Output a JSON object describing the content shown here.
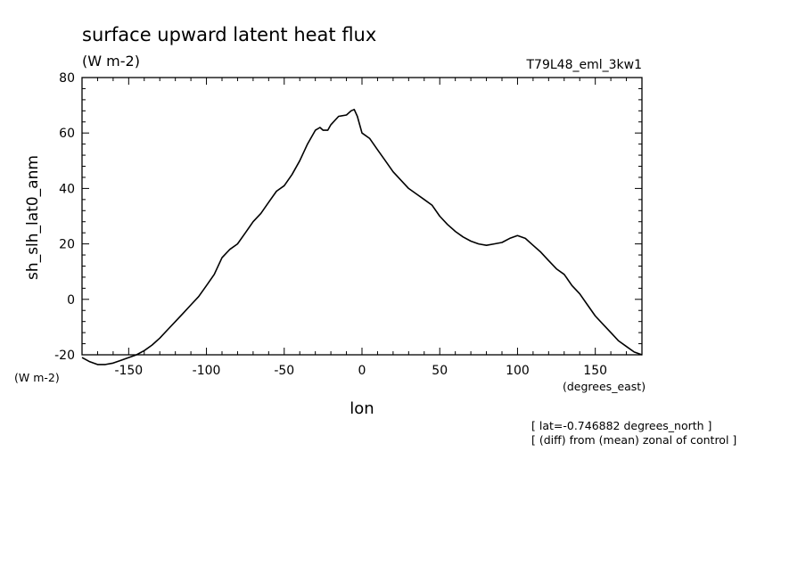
{
  "chart_data": {
    "type": "line",
    "title": "surface upward latent heat flux",
    "subtitle": "(W m-2)",
    "run_label": "T79L48_eml_3kw1",
    "ylabel": "sh_slh_lat0_anm",
    "yunit": "(W m-2)",
    "xlabel": "lon",
    "xunit": "(degrees_east)",
    "notes": [
      "[ lat=-0.746882 degrees_north ]",
      "[ (diff) from (mean) zonal of control ]"
    ],
    "xlim": [
      -180,
      180
    ],
    "ylim": [
      -20,
      80
    ],
    "xticks": [
      -150,
      -100,
      -50,
      0,
      50,
      100,
      150
    ],
    "xtick_labels": [
      "-150",
      "-100",
      "-50",
      "0",
      "50",
      "100",
      "150"
    ],
    "yticks": [
      -20,
      0,
      20,
      40,
      60,
      80
    ],
    "ytick_labels": [
      "-20",
      "0",
      "20",
      "40",
      "60",
      "80"
    ],
    "grid": false,
    "series": [
      {
        "color": "#000000",
        "x": [
          -180,
          -175,
          -170,
          -165,
          -160,
          -155,
          -150,
          -145,
          -140,
          -135,
          -130,
          -125,
          -120,
          -115,
          -110,
          -105,
          -100,
          -95,
          -90,
          -85,
          -80,
          -75,
          -70,
          -65,
          -60,
          -55,
          -50,
          -45,
          -40,
          -35,
          -30,
          -27,
          -25,
          -22,
          -20,
          -15,
          -10,
          -7,
          -5,
          -3,
          0,
          5,
          10,
          15,
          20,
          25,
          30,
          35,
          40,
          45,
          50,
          55,
          60,
          65,
          70,
          75,
          80,
          85,
          90,
          95,
          100,
          105,
          110,
          115,
          120,
          125,
          130,
          135,
          140,
          145,
          150,
          155,
          160,
          165,
          170,
          175,
          180
        ],
        "y": [
          -21,
          -22.5,
          -23.5,
          -23.5,
          -23,
          -22,
          -21,
          -20,
          -18.5,
          -16.5,
          -14,
          -11,
          -8,
          -5,
          -2,
          1,
          5,
          9,
          15,
          18,
          20,
          24,
          28,
          31,
          35,
          39,
          41,
          45,
          50,
          56,
          61,
          62,
          61,
          61,
          63,
          66,
          66.5,
          68,
          68.5,
          66,
          60,
          58,
          54,
          50,
          46,
          43,
          40,
          38,
          36,
          34,
          30,
          27,
          24.5,
          22.5,
          21,
          20,
          19.5,
          20,
          20.5,
          22,
          23,
          22,
          19.5,
          17,
          14,
          11,
          9,
          5,
          2,
          -2,
          -6,
          -9,
          -12,
          -15,
          -17,
          -19,
          -20
        ]
      }
    ]
  }
}
